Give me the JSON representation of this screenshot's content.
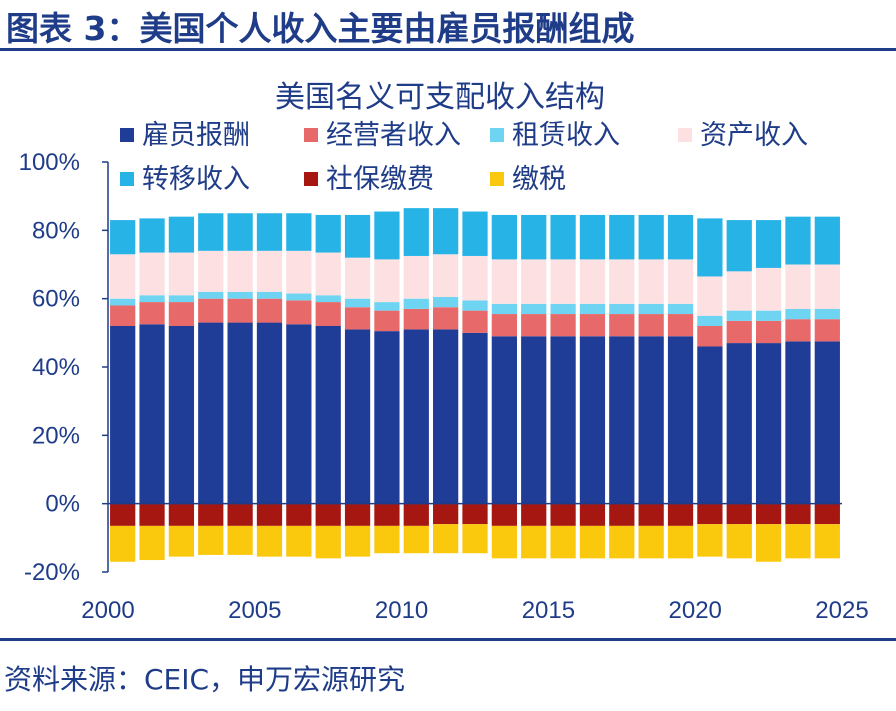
{
  "figure_title": "图表 3：美国个人收入主要由雇员报酬组成",
  "source": "资料来源：CEIC，申万宏源研究",
  "chart_data": {
    "type": "bar",
    "stacked": true,
    "title": "美国名义可支配收入结构",
    "xlabel": "",
    "ylabel": "",
    "ylim": [
      -20,
      100
    ],
    "y_ticks": [
      "100%",
      "80%",
      "60%",
      "40%",
      "20%",
      "0%",
      "-20%"
    ],
    "x_ticks": [
      "2000",
      "2005",
      "2010",
      "2015",
      "2020",
      "2025"
    ],
    "x_range": [
      2000,
      2025
    ],
    "grid": false,
    "legend_position": "top",
    "x_annual": [
      2000,
      2001,
      2002,
      2003,
      2004,
      2005,
      2006,
      2007,
      2008,
      2009,
      2010,
      2011,
      2012,
      2013,
      2014,
      2015,
      2016,
      2017,
      2018,
      2019,
      2020,
      2021,
      2022,
      2023,
      2024
    ],
    "series": [
      {
        "name": "雇员报酬",
        "color": "#1f3c96",
        "values": [
          52,
          52.5,
          52,
          53,
          53,
          53,
          52.5,
          52,
          51,
          50.5,
          51,
          51,
          50,
          49,
          49,
          49,
          49,
          49,
          49,
          49,
          46,
          47,
          47,
          47.5,
          47.5
        ]
      },
      {
        "name": "经营者收入",
        "color": "#e8696a",
        "values": [
          6,
          6.5,
          7,
          7,
          7,
          7,
          7,
          7,
          6.5,
          6,
          6,
          6.5,
          6.5,
          6.5,
          6.5,
          6.5,
          6.5,
          6.5,
          6.5,
          6.5,
          6,
          6.5,
          6.5,
          6.5,
          6.5
        ]
      },
      {
        "name": "租赁收入",
        "color": "#6fd4f2",
        "values": [
          2,
          2,
          2,
          2,
          2,
          2,
          2,
          2,
          2.5,
          2.5,
          3,
          3,
          3,
          3,
          3,
          3,
          3,
          3,
          3,
          3,
          3,
          3,
          3,
          3,
          3
        ]
      },
      {
        "name": "资产收入",
        "color": "#fce0e2",
        "values": [
          13,
          12.5,
          12.5,
          12,
          12,
          12,
          12.5,
          12.5,
          12,
          12.5,
          12.5,
          12.5,
          13,
          13,
          13,
          13,
          13,
          13,
          13,
          13,
          11.5,
          11.5,
          12.5,
          13,
          13
        ]
      },
      {
        "name": "转移收入",
        "color": "#27b3e6",
        "values": [
          10,
          10,
          10.5,
          11,
          11,
          11,
          11,
          11,
          12.5,
          14,
          14,
          13.5,
          13,
          13,
          13,
          13,
          13,
          13,
          13,
          13,
          17,
          15,
          14,
          14,
          14
        ]
      },
      {
        "name": "社保缴费",
        "color": "#a61712",
        "values": [
          -6.5,
          -6.5,
          -6.5,
          -6.5,
          -6.5,
          -6.5,
          -6.5,
          -6.5,
          -6.5,
          -6.5,
          -6.5,
          -6,
          -6,
          -6.5,
          -6.5,
          -6.5,
          -6.5,
          -6.5,
          -6.5,
          -6.5,
          -6,
          -6,
          -6,
          -6,
          -6
        ]
      },
      {
        "name": "缴税",
        "color": "#fac80d",
        "values": [
          -10.5,
          -10,
          -9,
          -8.5,
          -8.5,
          -9,
          -9,
          -9.5,
          -9,
          -8,
          -8,
          -8.5,
          -8.5,
          -9.5,
          -9.5,
          -9.5,
          -9.5,
          -9.5,
          -9.5,
          -9.5,
          -9.5,
          -10,
          -11,
          -10,
          -10
        ]
      }
    ]
  }
}
